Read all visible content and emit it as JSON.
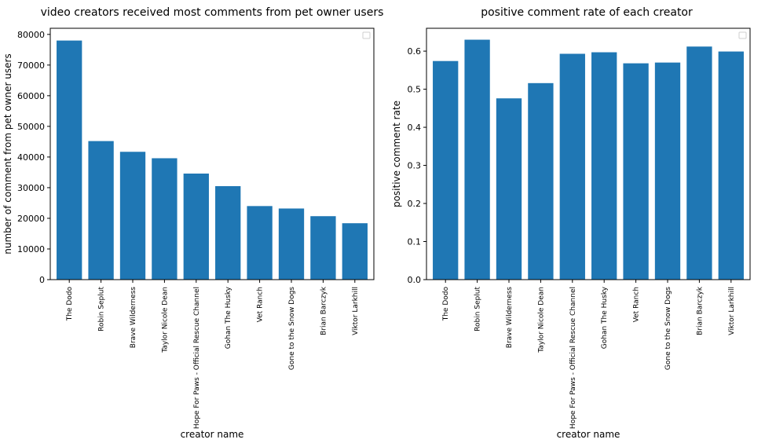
{
  "chart_data": [
    {
      "type": "bar",
      "title": "video creators received most comments from pet owner users",
      "xlabel": "creator name",
      "ylabel": "number of comment from pet owner users",
      "categories": [
        "The Dodo",
        "Robin Seplut",
        "Brave Wilderness",
        "Taylor Nicole Dean",
        "Hope For Paws - Official Rescue Channel",
        "Gohan The Husky",
        "Vet Ranch",
        "Gone to the Snow Dogs",
        "Brian Barczyk",
        "Viktor Larkhill"
      ],
      "values": [
        78000,
        45200,
        41700,
        39600,
        34600,
        30500,
        24000,
        23200,
        20700,
        18400
      ],
      "ylim": [
        0,
        82000
      ],
      "yticks": [
        0,
        10000,
        20000,
        30000,
        40000,
        50000,
        60000,
        70000,
        80000
      ],
      "bar_color": "#1f77b4",
      "legend": "upper right (empty)",
      "grid": false
    },
    {
      "type": "bar",
      "title": "positive comment rate of each creator",
      "xlabel": "creator name",
      "ylabel": "positive comment rate",
      "categories": [
        "The Dodo",
        "Robin Seplut",
        "Brave Wilderness",
        "Taylor Nicole Dean",
        "Hope For Paws - Official Rescue Channel",
        "Gohan The Husky",
        "Vet Ranch",
        "Gone to the Snow Dogs",
        "Brian Barczyk",
        "Viktor Larkhill"
      ],
      "values": [
        0.574,
        0.63,
        0.476,
        0.516,
        0.593,
        0.597,
        0.568,
        0.57,
        0.612,
        0.599
      ],
      "ylim": [
        0,
        0.66
      ],
      "yticks": [
        0.0,
        0.1,
        0.2,
        0.3,
        0.4,
        0.5,
        0.6
      ],
      "bar_color": "#1f77b4",
      "legend": "upper right (empty)",
      "grid": false
    }
  ]
}
